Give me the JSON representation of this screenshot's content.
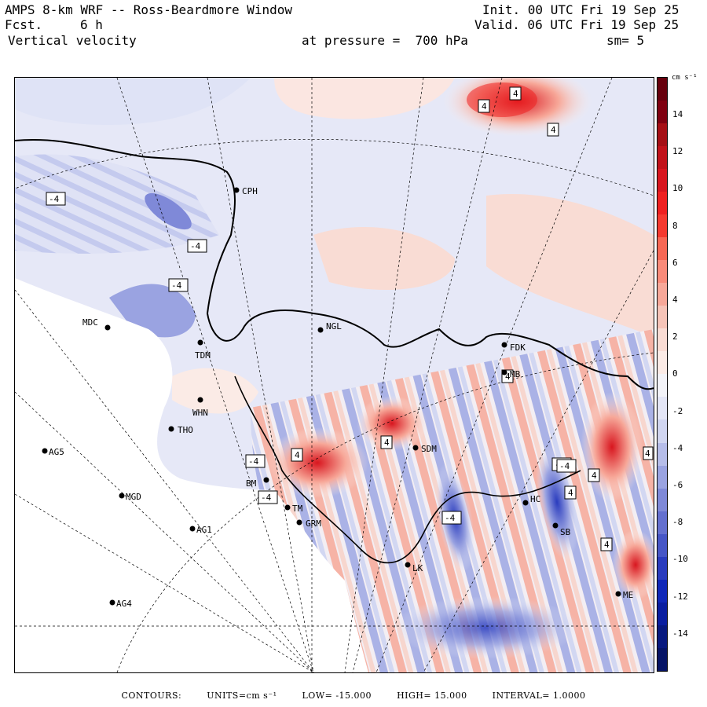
{
  "header": {
    "title": "AMPS 8-km WRF -- Ross-Beardmore Window",
    "fcst_label": "Fcst.",
    "fcst_value": "6 h",
    "field": "Vertical velocity",
    "init": "Init. 00 UTC Fri 19 Sep 25",
    "valid": "Valid. 06 UTC Fri 19 Sep 25",
    "pressure": "at pressure =  700 hPa",
    "smoothing": "sm= 5"
  },
  "map": {
    "stations": [
      "CPH",
      "MDC",
      "TDM",
      "NGL",
      "FDK",
      "WHN",
      "THO",
      "AG5",
      "MGD",
      "AG1",
      "AG4",
      "BM",
      "TM",
      "GRM",
      "SDM",
      "MB",
      "LK",
      "SB",
      "HC",
      "ME"
    ],
    "contour_labels": [
      "4",
      "4",
      "4",
      "-4",
      "-4",
      "-4",
      "4",
      "4",
      "-4",
      "4",
      "-4",
      "4",
      "-4",
      "-4",
      "4",
      "-4",
      "4",
      "4"
    ]
  },
  "colorbar": {
    "units": "cm s⁻¹",
    "ticks": [
      "14",
      "12",
      "10",
      "8",
      "6",
      "4",
      "2",
      "0",
      "-2",
      "-4",
      "-6",
      "-8",
      "-10",
      "-12",
      "-14"
    ],
    "colors": [
      "#67000d",
      "#7f0010",
      "#a50f15",
      "#c1121a",
      "#d8161f",
      "#ef2020",
      "#f53a30",
      "#f76855",
      "#f88b7a",
      "#f7a899",
      "#f6c4b8",
      "#f9dcd4",
      "#fbebe6",
      "#f3f3f8",
      "#e4e6f6",
      "#d0d5f0",
      "#b6bde9",
      "#9aa3e1",
      "#7f89d8",
      "#6470cf",
      "#4656c6",
      "#2a3cbe",
      "#1028b8",
      "#0a1ea0",
      "#08197f",
      "#061466"
    ]
  },
  "footer": {
    "contours": "CONTOURS:",
    "units": "UNITS=cm s⁻¹",
    "low": "LOW= -15.000",
    "high": "HIGH=  15.000",
    "interval": "INTERVAL=   1.0000"
  }
}
